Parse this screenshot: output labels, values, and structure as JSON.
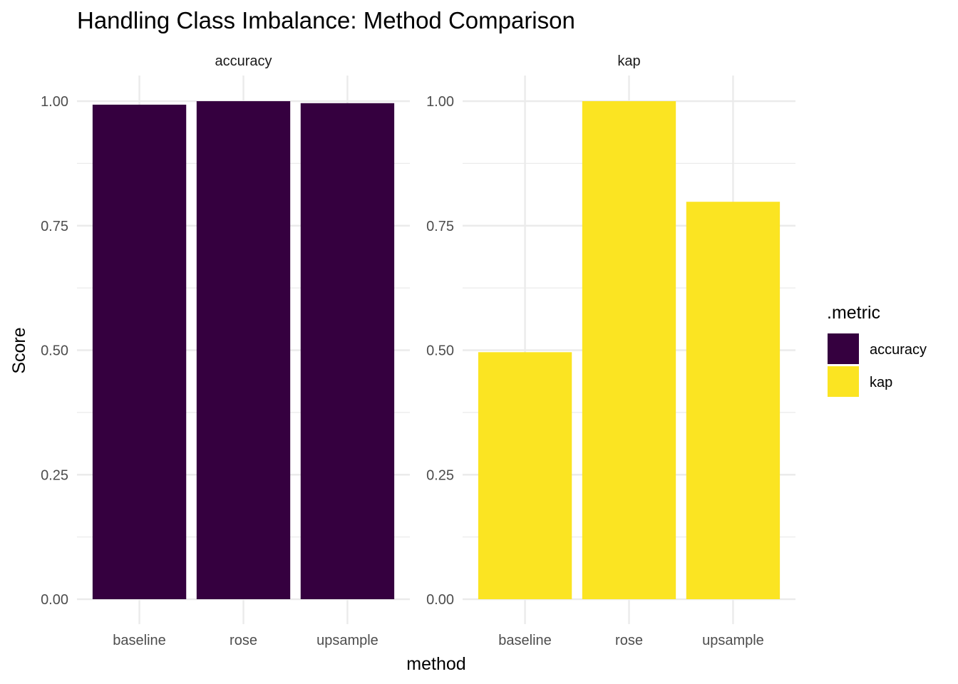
{
  "chart_data": {
    "type": "bar",
    "title": "Handling Class Imbalance: Method Comparison",
    "xlabel": "method",
    "ylabel": "Score",
    "ylim": [
      0,
      1.04
    ],
    "yticks": [
      "0.00",
      "0.25",
      "0.50",
      "0.75",
      "1.00"
    ],
    "categories": [
      "baseline",
      "rose",
      "upsample"
    ],
    "facets": [
      {
        "label": "accuracy",
        "values": [
          0.993,
          1.0,
          0.996
        ],
        "color": "#35003f"
      },
      {
        "label": "kap",
        "values": [
          0.496,
          1.0,
          0.798
        ],
        "color": "#fbe422"
      }
    ],
    "legend": {
      "title": ".metric",
      "position": "right",
      "items": [
        {
          "label": "accuracy",
          "color": "#35003f"
        },
        {
          "label": "kap",
          "color": "#fbe422"
        }
      ]
    },
    "grid": true
  }
}
